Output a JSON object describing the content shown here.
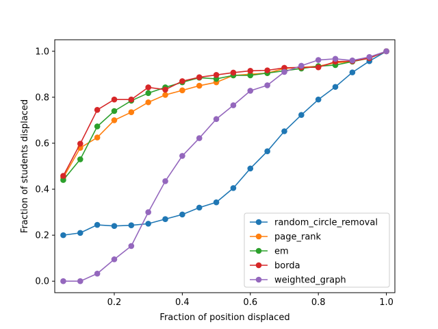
{
  "chart_data": {
    "type": "line",
    "title": "",
    "xlabel": "Fraction of position displaced",
    "ylabel": "Fraction of students displaced",
    "xlim": [
      0.025,
      1.025
    ],
    "ylim": [
      -0.05,
      1.05
    ],
    "xticks": [
      0.2,
      0.4,
      0.6,
      0.8,
      1.0
    ],
    "xtick_labels": [
      "0.2",
      "0.4",
      "0.6",
      "0.8",
      "1.0"
    ],
    "yticks": [
      0.0,
      0.2,
      0.4,
      0.6,
      0.8,
      1.0
    ],
    "ytick_labels": [
      "0.0",
      "0.2",
      "0.4",
      "0.6",
      "0.8",
      "1.0"
    ],
    "grid": false,
    "legend_position": "lower-right",
    "x": [
      0.05,
      0.1,
      0.15,
      0.2,
      0.25,
      0.3,
      0.35,
      0.4,
      0.45,
      0.5,
      0.55,
      0.6,
      0.65,
      0.7,
      0.75,
      0.8,
      0.85,
      0.9,
      0.95,
      1.0
    ],
    "series": [
      {
        "name": "random_circle_removal",
        "color": "#1f77b4",
        "values": [
          0.2,
          0.21,
          0.245,
          0.24,
          0.243,
          0.25,
          0.27,
          0.29,
          0.32,
          0.343,
          0.405,
          0.49,
          0.565,
          0.652,
          0.723,
          0.79,
          0.845,
          0.908,
          0.957,
          1.0
        ]
      },
      {
        "name": "page_rank",
        "color": "#ff7f0e",
        "values": [
          0.45,
          0.58,
          0.625,
          0.7,
          0.735,
          0.778,
          0.81,
          0.83,
          0.85,
          0.865,
          0.895,
          0.9,
          0.905,
          0.925,
          0.93,
          0.935,
          0.95,
          0.955,
          0.97,
          1.0
        ]
      },
      {
        "name": "em",
        "color": "#2ca02c",
        "values": [
          0.44,
          0.53,
          0.673,
          0.74,
          0.785,
          0.818,
          0.843,
          0.865,
          0.885,
          0.88,
          0.895,
          0.895,
          0.905,
          0.915,
          0.925,
          0.935,
          0.94,
          0.955,
          0.97,
          1.0
        ]
      },
      {
        "name": "borda",
        "color": "#d62728",
        "values": [
          0.458,
          0.598,
          0.745,
          0.79,
          0.79,
          0.843,
          0.833,
          0.87,
          0.887,
          0.897,
          0.907,
          0.915,
          0.917,
          0.928,
          0.93,
          0.93,
          0.955,
          0.957,
          0.97,
          1.0
        ]
      },
      {
        "name": "weighted_graph",
        "color": "#9467bd",
        "values": [
          0.0,
          0.0,
          0.033,
          0.095,
          0.153,
          0.3,
          0.435,
          0.545,
          0.622,
          0.705,
          0.765,
          0.828,
          0.852,
          0.91,
          0.937,
          0.962,
          0.967,
          0.96,
          0.975,
          1.0
        ]
      }
    ]
  }
}
